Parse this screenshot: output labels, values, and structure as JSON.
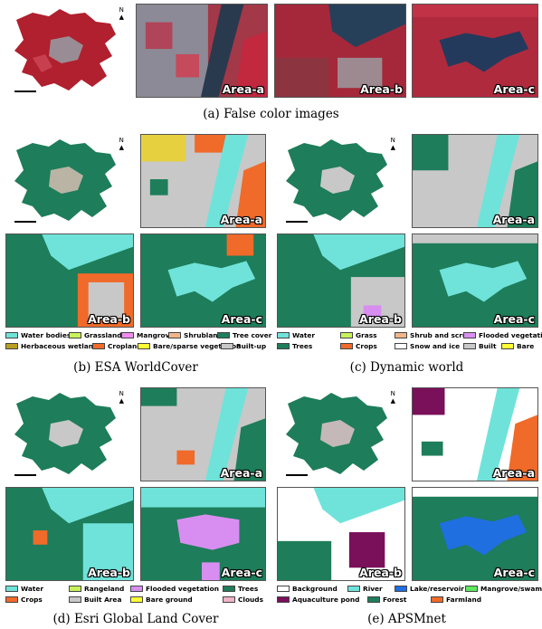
{
  "figure": {
    "row_a": {
      "caption": "(a)  False color images",
      "panels": [
        {
          "label": "Area-a",
          "kind": "false-color"
        },
        {
          "label": "Area-b",
          "kind": "false-color"
        },
        {
          "label": "Area-c",
          "kind": "false-color"
        }
      ]
    },
    "b": {
      "caption": "(b)  ESA WorldCover",
      "labels": [
        "Area-a",
        "Area-b",
        "Area-c"
      ],
      "legend": [
        {
          "label": "Water bodies",
          "color": "#6fe3da"
        },
        {
          "label": "Grassland",
          "color": "#c8f25a"
        },
        {
          "label": "Mangroves",
          "color": "#f08cf0"
        },
        {
          "label": "Shrubland",
          "color": "#f2b48a"
        },
        {
          "label": "Tree cover",
          "color": "#1e7d5a"
        },
        {
          "label": "Herbaceous wetland",
          "color": "#b8a020"
        },
        {
          "label": "Cropland",
          "color": "#f06a2a"
        },
        {
          "label": "Bare/sparse vegetation",
          "color": "#ffff33"
        },
        {
          "label": "Built-up",
          "color": "#c8c8c8"
        }
      ]
    },
    "c": {
      "caption": "(c)  Dynamic world",
      "labels": [
        "Area-a",
        "Area-b",
        "Area-c"
      ],
      "legend": [
        {
          "label": "Water",
          "color": "#6fe3da"
        },
        {
          "label": "Grass",
          "color": "#c8f25a"
        },
        {
          "label": "Shrub and scrub",
          "color": "#f2b48a"
        },
        {
          "label": "Flooded vegetation",
          "color": "#d88ef0"
        },
        {
          "label": "Trees",
          "color": "#1e7d5a"
        },
        {
          "label": "Crops",
          "color": "#f06a2a"
        },
        {
          "label": "Snow and ice",
          "color": "#ffffff"
        },
        {
          "label": "Built",
          "color": "#c8c8c8"
        },
        {
          "label": "Bare",
          "color": "#ffff33"
        }
      ]
    },
    "d": {
      "caption": "(d)  Esri Global Land Cover",
      "labels": [
        "Area-a",
        "Area-b",
        "Area-c"
      ],
      "legend": [
        {
          "label": "Water",
          "color": "#6fe3da"
        },
        {
          "label": "Rangeland",
          "color": "#c8f25a"
        },
        {
          "label": "Flooded vegetation",
          "color": "#d88ef0"
        },
        {
          "label": "Trees",
          "color": "#1e7d5a"
        },
        {
          "label": "Crops",
          "color": "#f06a2a"
        },
        {
          "label": "Built Area",
          "color": "#c8c8c8"
        },
        {
          "label": "Bare ground",
          "color": "#ffff33"
        },
        {
          "label": "Clouds",
          "color": "#f0b4c8"
        }
      ]
    },
    "e": {
      "caption": "(e)  APSMnet",
      "labels": [
        "Area-a",
        "Area-b",
        "Area-c"
      ],
      "legend": [
        {
          "label": "Background",
          "color": "#ffffff"
        },
        {
          "label": "River",
          "color": "#6fe3da"
        },
        {
          "label": "Lake/reservoir",
          "color": "#1f6fe0"
        },
        {
          "label": "Mangrove/swamp",
          "color": "#5fe85f"
        },
        {
          "label": "Aquaculture pond",
          "color": "#7a0f5a"
        },
        {
          "label": "Forest",
          "color": "#1e7d5a"
        },
        {
          "label": "Farmland",
          "color": "#f06a2a"
        }
      ]
    },
    "north_label": "N"
  }
}
